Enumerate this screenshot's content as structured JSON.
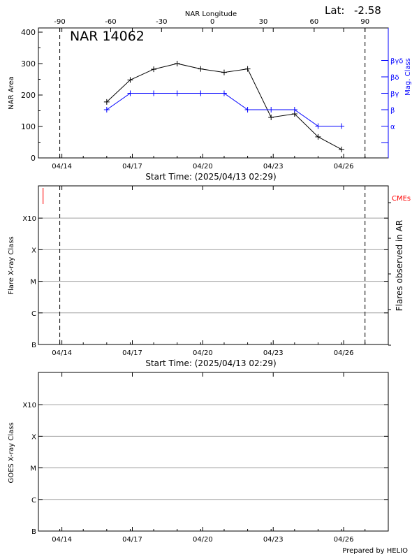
{
  "header": {
    "lat_label": "Lat:",
    "lat_value": "-2.58"
  },
  "footer": {
    "credit": "Prepared by HELIO"
  },
  "colors": {
    "area": "#000000",
    "mag": "#0000ff",
    "cme": "#ff0000",
    "grid": "#a0a0a0"
  },
  "chart_data": [
    {
      "type": "line",
      "title": "NAR 14062",
      "top_axis_label": "NAR Longitude",
      "top_ticks": [
        -90,
        -60,
        -30,
        0,
        30,
        60,
        90
      ],
      "xlabel": "Start Time: (2025/04/13 02:29)",
      "ylabel": "NAR Area",
      "right_label": "Mag. Class",
      "x_ticks": [
        "04/14",
        "04/17",
        "04/20",
        "04/23",
        "04/26"
      ],
      "x_tick_days": [
        1,
        4,
        7,
        10,
        13
      ],
      "xlim_days": [
        0,
        14.9
      ],
      "ylim": [
        0,
        400
      ],
      "y_ticks": [
        0,
        100,
        200,
        300,
        400
      ],
      "mag_classes": [
        "α",
        "β",
        "βγ",
        "βδ",
        "βγδ"
      ],
      "vlines_days": [
        0.91,
        13.91
      ],
      "series": [
        {
          "x_days": [
            2.91,
            3.91,
            4.91,
            5.91,
            6.91,
            7.91,
            8.91,
            9.91,
            10.91,
            11.91,
            12.91,
            13.91
          ],
          "x_days_note": "",
          "values": [
            178,
            248,
            282,
            300,
            283,
            272,
            283,
            129,
            140,
            67,
            27,
            15
          ]
        },
        {
          "x_days": [
            2.91,
            3.91,
            4.91,
            5.91,
            6.91,
            7.91,
            8.91,
            9.91,
            10.91,
            11.91,
            12.91,
            13.91
          ],
          "values": [
            "β",
            "βγ",
            "βγ",
            "βγ",
            "βγ",
            "βγ",
            "β",
            "β",
            "β",
            "α",
            "α",
            "α"
          ]
        }
      ]
    },
    {
      "type": "scatter",
      "xlabel": "Start Time: (2025/04/13 02:29)",
      "ylabel": "Flare X-ray Class",
      "right_label": "Flares observed in AR",
      "cme_label": "CMEs",
      "x_ticks": [
        "04/14",
        "04/17",
        "04/20",
        "04/23",
        "04/26"
      ],
      "y_ticks": [
        "B",
        "C",
        "M",
        "X",
        "X10"
      ],
      "grid": true,
      "vlines_days": [
        0.91,
        13.91
      ],
      "cme_days": [
        0.14
      ],
      "series": []
    },
    {
      "type": "line",
      "ylabel": "GOES X-ray Class",
      "x_ticks": [
        "04/14",
        "04/17",
        "04/20",
        "04/23",
        "04/26"
      ],
      "y_ticks": [
        "B",
        "C",
        "M",
        "X",
        "X10"
      ],
      "grid": true,
      "series": []
    }
  ]
}
